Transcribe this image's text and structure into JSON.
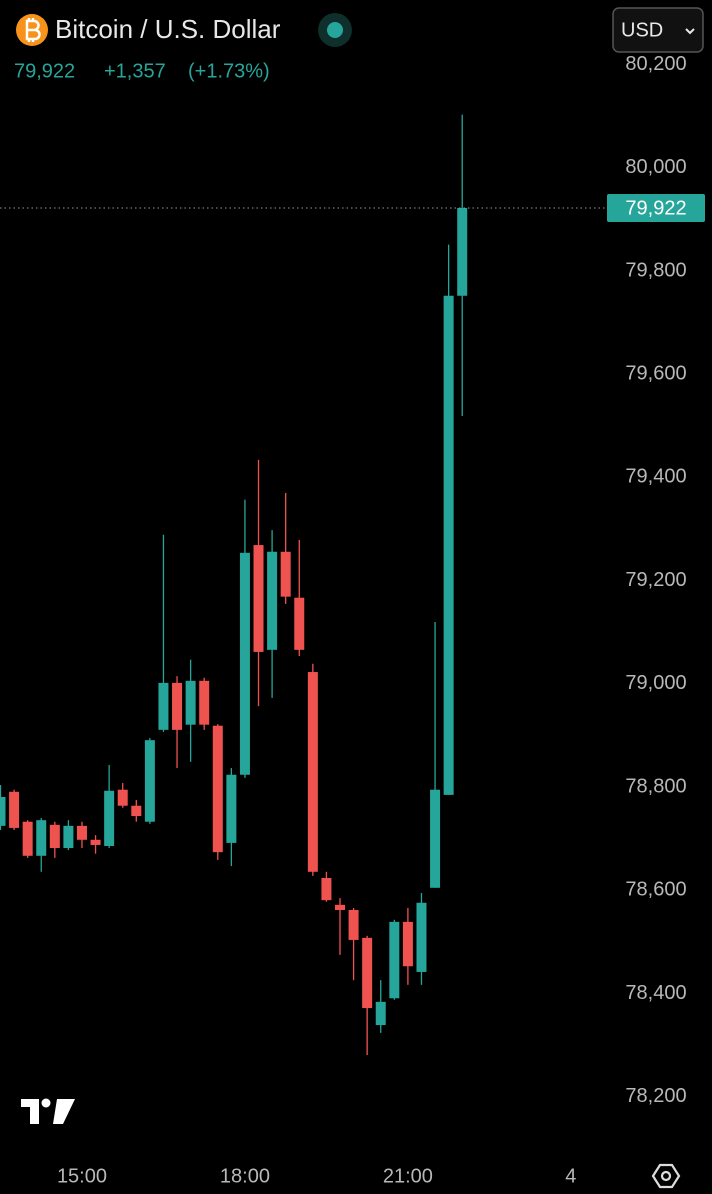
{
  "header": {
    "price": "79,922",
    "change": "+1,357",
    "change_pct": "(+1.73%)",
    "currency": "USD"
  },
  "chart_data": {
    "type": "candlestick",
    "title": "Bitcoin / U.S. Dollar",
    "categories": [
      null,
      null,
      null,
      null,
      null,
      null,
      "15:00",
      null,
      null,
      null,
      null,
      null,
      null,
      null,
      null,
      null,
      null,
      null,
      "18:00",
      null,
      null,
      null,
      null,
      null,
      null,
      null,
      null,
      null,
      null,
      null,
      "21:00",
      null,
      null,
      null,
      null,
      null,
      null,
      null,
      null,
      null,
      null,
      null,
      "4"
    ],
    "open": [
      78725,
      78791,
      78733,
      78667,
      78727,
      78682,
      78725,
      78698,
      78686,
      78795,
      78764,
      78733,
      78911,
      79002,
      78921,
      79006,
      78919,
      78692,
      78824,
      79269,
      79066,
      79256,
      79167,
      79023,
      78624,
      78572,
      78562,
      78508,
      78339,
      78391,
      78539,
      78442,
      78605,
      78785,
      79752,
      null,
      null,
      null,
      null,
      null,
      null,
      null,
      null
    ],
    "high": [
      78804,
      78795,
      78736,
      78740,
      78733,
      78736,
      78733,
      78707,
      78843,
      78808,
      78775,
      78895,
      79289,
      79015,
      79047,
      79012,
      78922,
      78837,
      79357,
      79434,
      79298,
      79370,
      79279,
      79039,
      78636,
      78585,
      78566,
      78512,
      78426,
      78543,
      78566,
      78595,
      79120,
      79851,
      80103,
      null,
      null,
      null,
      null,
      null,
      null,
      null,
      null
    ],
    "low": [
      78717,
      78717,
      78663,
      78636,
      78663,
      78678,
      78682,
      78671,
      78682,
      78760,
      78733,
      78729,
      78907,
      78837,
      78849,
      78911,
      78659,
      78647,
      78818,
      78957,
      78973,
      79155,
      79054,
      78628,
      78578,
      78475,
      78426,
      78281,
      78324,
      78388,
      78417,
      78417,
      78605,
      78785,
      79519,
      null,
      null,
      null,
      null,
      null,
      null,
      null,
      null
    ],
    "close": [
      78781,
      78721,
      78667,
      78736,
      78682,
      78725,
      78698,
      78688,
      78793,
      78764,
      78744,
      78891,
      79002,
      78911,
      79006,
      78921,
      78674,
      78824,
      79254,
      79062,
      79256,
      79169,
      79066,
      78636,
      78581,
      78562,
      78504,
      78372,
      78384,
      78539,
      78453,
      78576,
      78795,
      79752,
      79922,
      null,
      null,
      null,
      null,
      null,
      null,
      null,
      null
    ],
    "up_color": "#26a69a",
    "down_color": "#ef5350",
    "ylim": [
      78097,
      80325
    ],
    "yticks": [
      {
        "value": 78200,
        "label": "78,200"
      },
      {
        "value": 78400,
        "label": "78,400"
      },
      {
        "value": 78600,
        "label": "78,600"
      },
      {
        "value": 78800,
        "label": "78,800"
      },
      {
        "value": 79000,
        "label": "79,000"
      },
      {
        "value": 79200,
        "label": "79,200"
      },
      {
        "value": 79400,
        "label": "79,400"
      },
      {
        "value": 79600,
        "label": "79,600"
      },
      {
        "value": 79800,
        "label": "79,800"
      },
      {
        "value": 80000,
        "label": "80,000"
      },
      {
        "value": 80200,
        "label": "80,200"
      }
    ],
    "last_price": {
      "value": 79922,
      "label": "79,922"
    }
  }
}
